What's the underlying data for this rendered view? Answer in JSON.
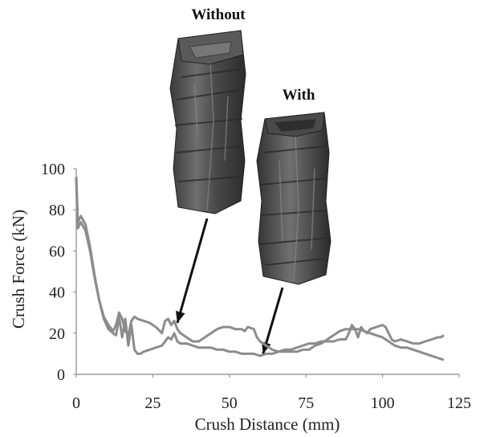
{
  "chart_data": {
    "type": "line",
    "title": "",
    "xlabel": "Crush Distance (mm)",
    "ylabel": "Crush Force (kN)",
    "xlim": [
      0,
      125
    ],
    "ylim": [
      0,
      100
    ],
    "xticks": [
      "0",
      "25",
      "50",
      "75",
      "100",
      "125"
    ],
    "yticks": [
      "0",
      "20",
      "40",
      "60",
      "80",
      "100"
    ],
    "grid": false,
    "legend": "none",
    "line_color": "#8c8c8c",
    "series": [
      {
        "points": [
          [
            0,
            96
          ],
          [
            0.5,
            74
          ],
          [
            1.5,
            77
          ],
          [
            3,
            73
          ],
          [
            4.5,
            62
          ],
          [
            6,
            48
          ],
          [
            7.5,
            36
          ],
          [
            9,
            27
          ],
          [
            10.5,
            22
          ],
          [
            12,
            20
          ],
          [
            13,
            19
          ],
          [
            14,
            28
          ],
          [
            15,
            18
          ],
          [
            16,
            27
          ],
          [
            17,
            14
          ],
          [
            18,
            24
          ],
          [
            19,
            12
          ],
          [
            20,
            10
          ],
          [
            21,
            10
          ],
          [
            22,
            11
          ],
          [
            24,
            12
          ],
          [
            26,
            13
          ],
          [
            28,
            14
          ],
          [
            30,
            18
          ],
          [
            31,
            17
          ],
          [
            32,
            20
          ],
          [
            33,
            16
          ],
          [
            34,
            15
          ],
          [
            36,
            15
          ],
          [
            38,
            14
          ],
          [
            40,
            13
          ],
          [
            42,
            13
          ],
          [
            44,
            13
          ],
          [
            46,
            12
          ],
          [
            48,
            12
          ],
          [
            50,
            11
          ],
          [
            52,
            11
          ],
          [
            54,
            10
          ],
          [
            56,
            10
          ],
          [
            58,
            10
          ],
          [
            60,
            9
          ],
          [
            62,
            10
          ],
          [
            64,
            10
          ],
          [
            66,
            11
          ],
          [
            68,
            11
          ],
          [
            70,
            11
          ],
          [
            72,
            11
          ],
          [
            74,
            12
          ],
          [
            76,
            12
          ],
          [
            78,
            14
          ],
          [
            80,
            15
          ],
          [
            82,
            17
          ],
          [
            84,
            19
          ],
          [
            86,
            21
          ],
          [
            88,
            22
          ],
          [
            90,
            22
          ],
          [
            92,
            22
          ],
          [
            94,
            21
          ],
          [
            96,
            20
          ],
          [
            98,
            19
          ],
          [
            100,
            18
          ],
          [
            102,
            16
          ],
          [
            104,
            14
          ],
          [
            106,
            13
          ],
          [
            108,
            13
          ],
          [
            110,
            12
          ],
          [
            112,
            11
          ],
          [
            114,
            10
          ],
          [
            116,
            9
          ],
          [
            118,
            8
          ],
          [
            120,
            7
          ]
        ]
      },
      {
        "points": [
          [
            0,
            96
          ],
          [
            0.5,
            71
          ],
          [
            1.5,
            74
          ],
          [
            3,
            70
          ],
          [
            4.5,
            60
          ],
          [
            6,
            47
          ],
          [
            7.5,
            36
          ],
          [
            9,
            28
          ],
          [
            10.5,
            24
          ],
          [
            12,
            21
          ],
          [
            13,
            24
          ],
          [
            14,
            30
          ],
          [
            15,
            27
          ],
          [
            16,
            21
          ],
          [
            17,
            19
          ],
          [
            18,
            26
          ],
          [
            19,
            28
          ],
          [
            20,
            27
          ],
          [
            22,
            26
          ],
          [
            24,
            25
          ],
          [
            26,
            23
          ],
          [
            28,
            20
          ],
          [
            29,
            26
          ],
          [
            30,
            27
          ],
          [
            31,
            24
          ],
          [
            32,
            26
          ],
          [
            33,
            22
          ],
          [
            34,
            20
          ],
          [
            36,
            18
          ],
          [
            38,
            16
          ],
          [
            40,
            16
          ],
          [
            42,
            18
          ],
          [
            44,
            20
          ],
          [
            46,
            22
          ],
          [
            48,
            23
          ],
          [
            50,
            23
          ],
          [
            52,
            22
          ],
          [
            54,
            22
          ],
          [
            55,
            21
          ],
          [
            56,
            23
          ],
          [
            58,
            22
          ],
          [
            59,
            18
          ],
          [
            60,
            16
          ],
          [
            62,
            14
          ],
          [
            64,
            12
          ],
          [
            66,
            11
          ],
          [
            68,
            12
          ],
          [
            70,
            12
          ],
          [
            72,
            13
          ],
          [
            74,
            14
          ],
          [
            76,
            15
          ],
          [
            78,
            15
          ],
          [
            80,
            16
          ],
          [
            82,
            16
          ],
          [
            84,
            16
          ],
          [
            86,
            17
          ],
          [
            88,
            17
          ],
          [
            89,
            20
          ],
          [
            90,
            24
          ],
          [
            91,
            22
          ],
          [
            92,
            18
          ],
          [
            93,
            23
          ],
          [
            94,
            21
          ],
          [
            95,
            20
          ],
          [
            96,
            22
          ],
          [
            98,
            23
          ],
          [
            100,
            24
          ],
          [
            101,
            23
          ],
          [
            102,
            20
          ],
          [
            103,
            17
          ],
          [
            104,
            16
          ],
          [
            106,
            17
          ],
          [
            108,
            16
          ],
          [
            110,
            15
          ],
          [
            112,
            15
          ],
          [
            114,
            16
          ],
          [
            116,
            17
          ],
          [
            118,
            18
          ],
          [
            119,
            18
          ],
          [
            120,
            19
          ]
        ]
      }
    ],
    "annotations": [
      {
        "text": "Without",
        "points_to": [
          33,
          25
        ]
      },
      {
        "text": "With",
        "points_to": [
          61,
          10
        ]
      }
    ]
  },
  "figure": {
    "illustrations": [
      {
        "name": "crushed-tube-without"
      },
      {
        "name": "crushed-tube-with"
      }
    ]
  }
}
